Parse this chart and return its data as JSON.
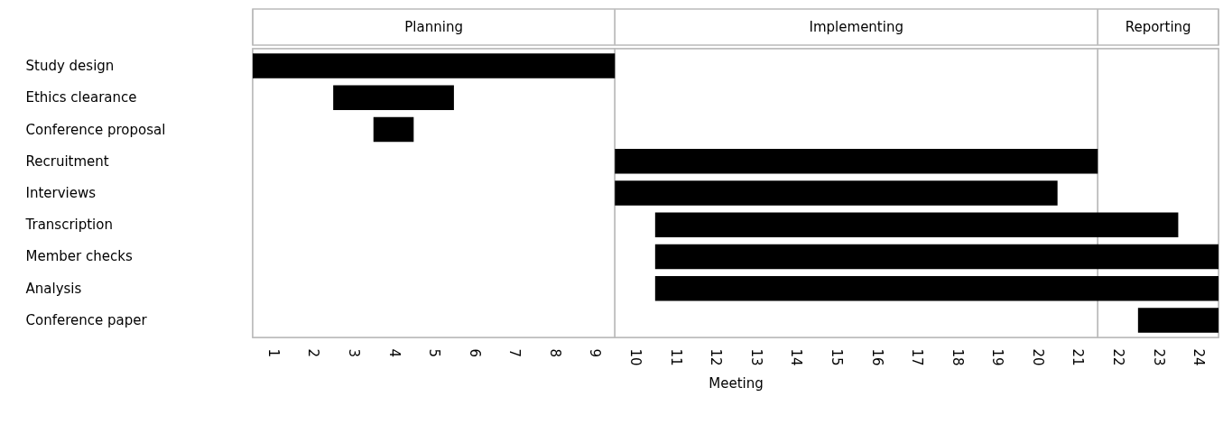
{
  "chart_data": {
    "type": "bar",
    "orientation": "horizontal",
    "xlabel": "Meeting",
    "categories": [
      "Study design",
      "Ethics clearance",
      "Conference proposal",
      "Recruitment",
      "Interviews",
      "Transcription",
      "Member checks",
      "Analysis",
      "Conference paper"
    ],
    "base": [
      0,
      2,
      3,
      9,
      9,
      10,
      10,
      10,
      22
    ],
    "values": [
      9,
      3,
      1,
      12,
      11,
      13,
      14,
      14,
      2
    ],
    "color": "#000000",
    "xlim": [
      0,
      24
    ],
    "xticks": [
      {
        "value": 0.5,
        "label": "1"
      },
      {
        "value": 1.5,
        "label": "2"
      },
      {
        "value": 2.5,
        "label": "3"
      },
      {
        "value": 3.5,
        "label": "4"
      },
      {
        "value": 4.5,
        "label": "5"
      },
      {
        "value": 5.5,
        "label": "6"
      },
      {
        "value": 6.5,
        "label": "7"
      },
      {
        "value": 7.5,
        "label": "8"
      },
      {
        "value": 8.5,
        "label": "9"
      },
      {
        "value": 9.5,
        "label": "10"
      },
      {
        "value": 10.5,
        "label": "11"
      },
      {
        "value": 11.5,
        "label": "12"
      },
      {
        "value": 12.5,
        "label": "13"
      },
      {
        "value": 13.5,
        "label": "14"
      },
      {
        "value": 14.5,
        "label": "15"
      },
      {
        "value": 15.5,
        "label": "16"
      },
      {
        "value": 16.5,
        "label": "17"
      },
      {
        "value": 17.5,
        "label": "18"
      },
      {
        "value": 18.5,
        "label": "19"
      },
      {
        "value": 19.5,
        "label": "20"
      },
      {
        "value": 20.5,
        "label": "21"
      },
      {
        "value": 21.5,
        "label": "22"
      },
      {
        "value": 22.5,
        "label": "23"
      },
      {
        "value": 23.5,
        "label": "24"
      }
    ],
    "bands": [
      {
        "axis": "x",
        "from": 0,
        "to": 9,
        "label": "Planning"
      },
      {
        "axis": "x",
        "from": 9,
        "to": 21,
        "label": "Implementing"
      },
      {
        "axis": "x",
        "from": 21,
        "to": 24,
        "label": "Reporting"
      }
    ]
  }
}
